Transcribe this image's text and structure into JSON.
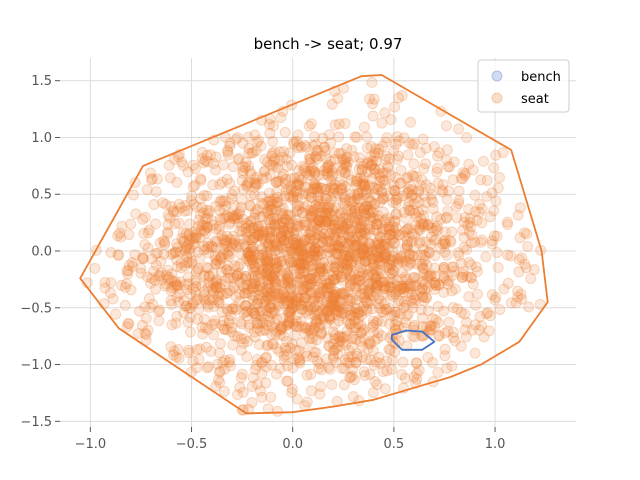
{
  "chart_data": {
    "type": "scatter",
    "title": "bench -> seat; 0.97",
    "xlabel": "",
    "ylabel": "",
    "xlim": [
      -1.15,
      1.4
    ],
    "ylim": [
      -1.55,
      1.7
    ],
    "xticks": [
      -1.0,
      -0.5,
      0.0,
      0.5,
      1.0
    ],
    "xtick_labels": [
      "−1.0",
      "−0.5",
      "0.0",
      "0.5",
      "1.0"
    ],
    "yticks": [
      -1.5,
      -1.0,
      -0.5,
      0.0,
      0.5,
      1.0,
      1.5
    ],
    "ytick_labels": [
      "−1.5",
      "−1.0",
      "−0.5",
      "0.0",
      "0.5",
      "1.0",
      "1.5"
    ],
    "grid": true,
    "legend_placement": "top-right",
    "series": [
      {
        "name": "bench",
        "color": "#4472c4",
        "hull": [
          [
            0.49,
            -0.74
          ],
          [
            0.56,
            -0.7
          ],
          [
            0.64,
            -0.71
          ],
          [
            0.7,
            -0.8
          ],
          [
            0.64,
            -0.87
          ],
          [
            0.54,
            -0.87
          ],
          [
            0.49,
            -0.78
          ]
        ]
      },
      {
        "name": "seat",
        "color": "#ed7d31",
        "point_count": 2600,
        "hull": [
          [
            -1.05,
            -0.24
          ],
          [
            -0.74,
            0.75
          ],
          [
            0.34,
            1.54
          ],
          [
            0.44,
            1.55
          ],
          [
            1.08,
            0.89
          ],
          [
            1.23,
            0.0
          ],
          [
            1.26,
            -0.45
          ],
          [
            1.12,
            -0.8
          ],
          [
            0.93,
            -1.0
          ],
          [
            0.78,
            -1.11
          ],
          [
            0.4,
            -1.31
          ],
          [
            0.2,
            -1.37
          ],
          [
            0.0,
            -1.42
          ],
          [
            -0.23,
            -1.43
          ],
          [
            -0.86,
            -0.68
          ],
          [
            -1.05,
            -0.24
          ]
        ]
      }
    ]
  }
}
